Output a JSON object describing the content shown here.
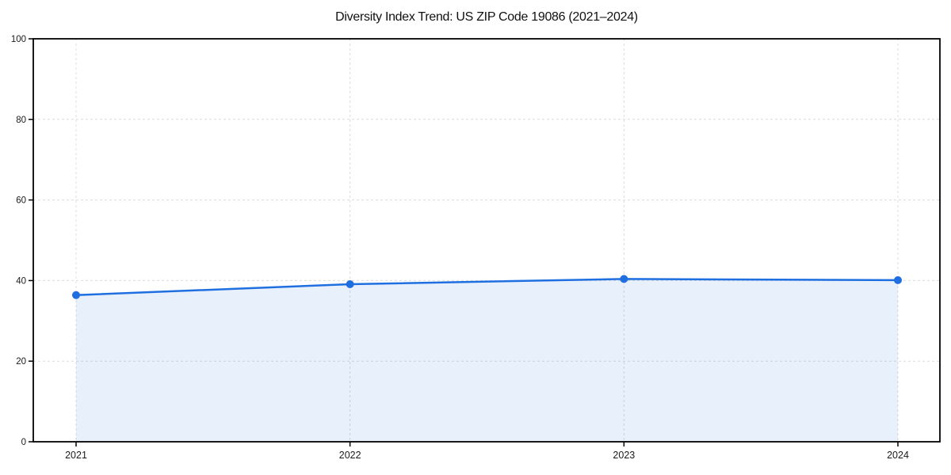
{
  "page": {
    "background": "#ffffff"
  },
  "chart_data": {
    "type": "line",
    "title": "Diversity Index Trend: US ZIP Code 19086 (2021–2024)",
    "categories": [
      "2021",
      "2022",
      "2023",
      "2024"
    ],
    "series": [
      {
        "name": "Diversity Index",
        "values": [
          36.4,
          39.1,
          40.4,
          40.1
        ]
      }
    ],
    "xlabel": "",
    "ylabel": "",
    "ylim": [
      0,
      100
    ],
    "yticks": [
      0,
      20,
      40,
      60,
      80,
      100
    ],
    "grid": true,
    "grid_style": "dashed",
    "legend": "none",
    "area_fill": true,
    "area_opacity": 0.1,
    "marker": "circle",
    "colors": {
      "line": "#1f6fe0",
      "marker": "#1f6fe0",
      "grid": "#dcdcdc",
      "spine": "#000000",
      "title_text": "#111111",
      "tick_text": "#1a1a1a",
      "background": "#ffffff"
    }
  }
}
